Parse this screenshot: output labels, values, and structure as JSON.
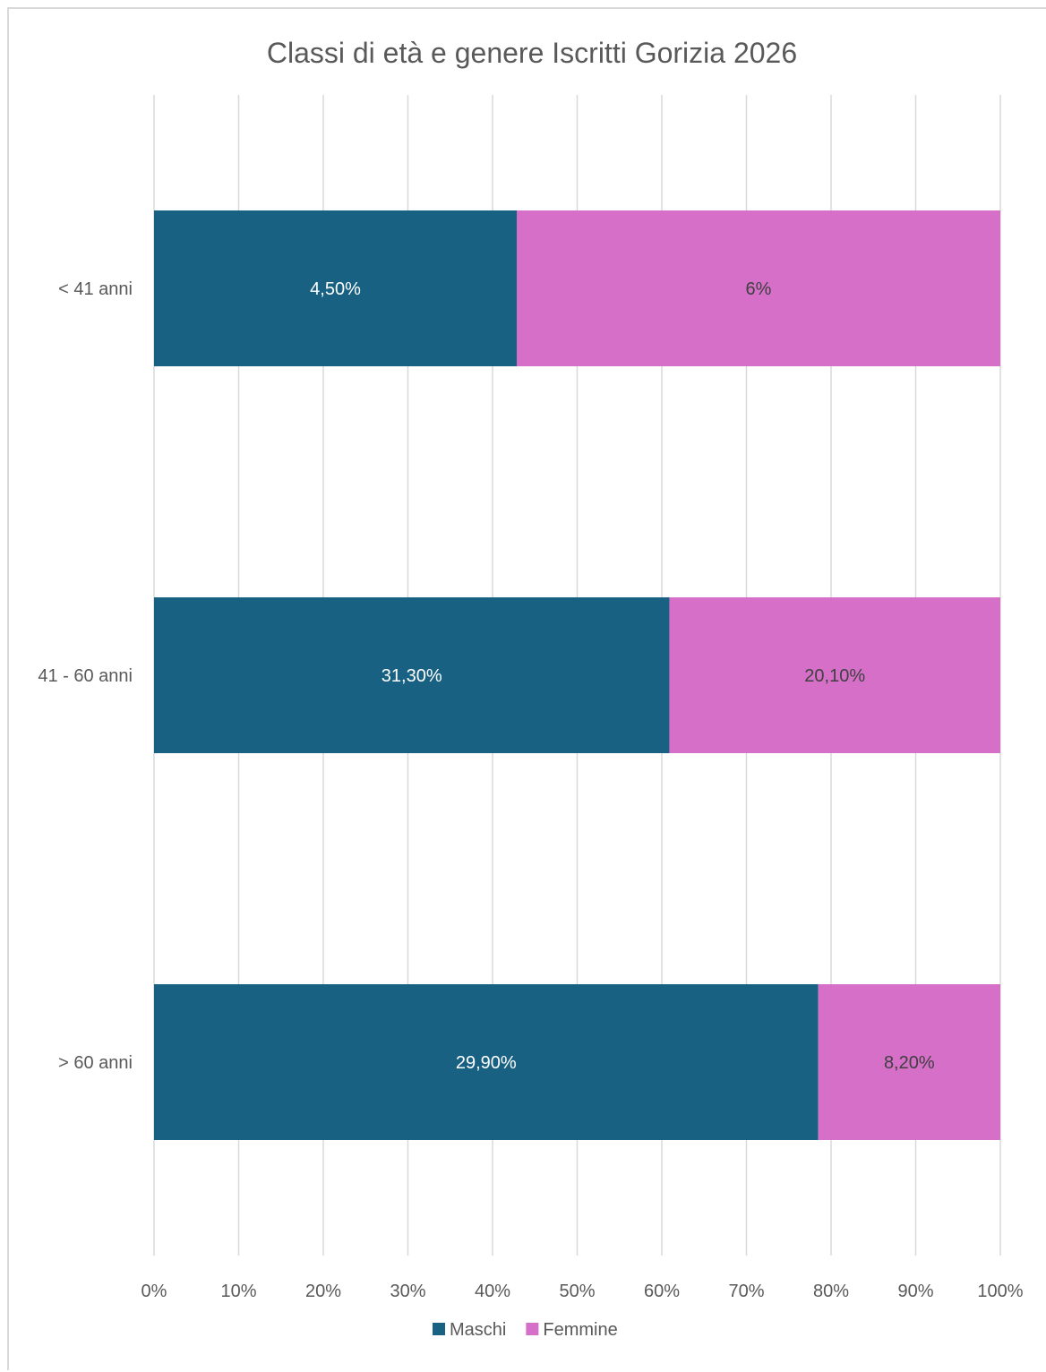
{
  "chart_data": {
    "type": "bar",
    "orientation": "horizontal",
    "stacking": "percent",
    "title": "Classi di età e genere Iscritti Gorizia 2026",
    "categories": [
      "< 41 anni",
      "41 - 60 anni",
      "> 60 anni"
    ],
    "series": [
      {
        "name": "Maschi",
        "color": "#186183",
        "values": [
          4.5,
          31.3,
          29.9
        ],
        "data_labels": [
          "4,50%",
          "31,30%",
          "29,90%"
        ]
      },
      {
        "name": "Femmine",
        "color": "#d56fc8",
        "values": [
          6,
          20.1,
          8.2
        ],
        "data_labels": [
          "6%",
          "20,10%",
          "8,20%"
        ]
      }
    ],
    "x_ticks": [
      "0%",
      "10%",
      "20%",
      "30%",
      "40%",
      "50%",
      "60%",
      "70%",
      "80%",
      "90%",
      "100%"
    ],
    "xlim": [
      0,
      100
    ],
    "grid": "vertical",
    "legend_position": "bottom"
  }
}
